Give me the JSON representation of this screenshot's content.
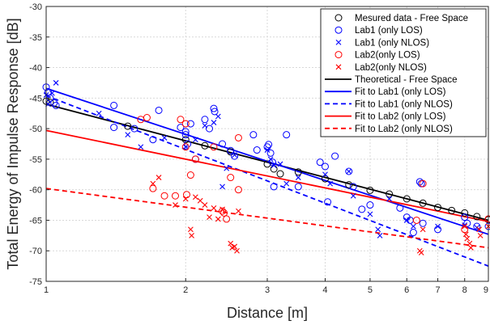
{
  "chart_data": {
    "type": "scatter",
    "title": "",
    "xlabel": "Distance [m]",
    "ylabel": "Total Energy of Impulse Response [dB]",
    "xscale": "log",
    "xlim": [
      1,
      9
    ],
    "ylim": [
      -75,
      -30
    ],
    "xticks": [
      1,
      2,
      3,
      4,
      5,
      6,
      7,
      8,
      9
    ],
    "yticks": [
      -75,
      -70,
      -65,
      -60,
      -55,
      -50,
      -45,
      -40,
      -35,
      -30
    ],
    "grid": true,
    "legend_placement": "top-right",
    "colors": {
      "black": "#000000",
      "blue": "#0000ff",
      "red": "#ff0000",
      "grid": "#d9d9d9"
    },
    "scatter_series": [
      {
        "name": "Mesured data - Free Space",
        "marker": "circle",
        "color": "#000000",
        "points": [
          [
            1.0,
            -45.5
          ],
          [
            1.02,
            -45.7
          ],
          [
            1.5,
            -49.6
          ],
          [
            2.0,
            -51.8
          ],
          [
            2.2,
            -52.8
          ],
          [
            2.5,
            -53.8
          ],
          [
            3.0,
            -55.8
          ],
          [
            3.1,
            -56.6
          ],
          [
            3.2,
            -57.4
          ],
          [
            3.5,
            -57.1
          ],
          [
            4.0,
            -58.2
          ],
          [
            4.5,
            -59.2
          ],
          [
            5.0,
            -60.1
          ],
          [
            5.5,
            -60.7
          ],
          [
            6.0,
            -61.5
          ],
          [
            6.5,
            -62.2
          ],
          [
            7.0,
            -62.9
          ],
          [
            7.5,
            -63.4
          ],
          [
            8.0,
            -63.8
          ],
          [
            8.5,
            -64.4
          ],
          [
            9.0,
            -64.9
          ]
        ]
      },
      {
        "name": "Lab1 (only LOS)",
        "marker": "circle",
        "color": "#0000ff",
        "points": [
          [
            1.0,
            -43.2
          ],
          [
            1.01,
            -44.0
          ],
          [
            1.02,
            -45.0
          ],
          [
            1.04,
            -45.8
          ],
          [
            1.05,
            -46.2
          ],
          [
            1.4,
            -46.2
          ],
          [
            1.4,
            -49.8
          ],
          [
            1.55,
            -50.0
          ],
          [
            1.7,
            -51.8
          ],
          [
            1.75,
            -47.0
          ],
          [
            1.95,
            -49.8
          ],
          [
            2.0,
            -50.5
          ],
          [
            2.0,
            -51.0
          ],
          [
            2.02,
            -52.5
          ],
          [
            2.05,
            -49.2
          ],
          [
            2.1,
            -55.0
          ],
          [
            2.2,
            -48.5
          ],
          [
            2.25,
            -50.0
          ],
          [
            2.3,
            -46.7
          ],
          [
            2.31,
            -47.2
          ],
          [
            2.4,
            -52.5
          ],
          [
            2.5,
            -53.6
          ],
          [
            2.55,
            -54.5
          ],
          [
            2.8,
            -51.0
          ],
          [
            2.85,
            -53.5
          ],
          [
            3.0,
            -53.0
          ],
          [
            3.02,
            -52.6
          ],
          [
            3.05,
            -54.0
          ],
          [
            3.08,
            -55.5
          ],
          [
            3.1,
            -59.5
          ],
          [
            3.3,
            -51.0
          ],
          [
            3.5,
            -59.5
          ],
          [
            3.9,
            -55.5
          ],
          [
            4.0,
            -56.2
          ],
          [
            4.05,
            -62.0
          ],
          [
            4.2,
            -54.5
          ],
          [
            4.5,
            -57.0
          ],
          [
            4.6,
            -59.5
          ],
          [
            4.8,
            -63.2
          ],
          [
            5.0,
            -62.5
          ],
          [
            5.8,
            -63.0
          ],
          [
            6.0,
            -64.5
          ],
          [
            6.1,
            -65.0
          ],
          [
            6.2,
            -67.0
          ],
          [
            6.4,
            -58.7
          ],
          [
            6.45,
            -59.0
          ],
          [
            6.5,
            -65.5
          ],
          [
            7.0,
            -66.5
          ],
          [
            8.0,
            -64.5
          ],
          [
            8.1,
            -65.5
          ],
          [
            8.5,
            -66.0
          ],
          [
            9.0,
            -66.0
          ]
        ]
      },
      {
        "name": "Lab1 (only NLOS)",
        "marker": "x",
        "color": "#0000ff",
        "points": [
          [
            1.0,
            -44.5
          ],
          [
            1.01,
            -46.0
          ],
          [
            1.03,
            -44.2
          ],
          [
            1.05,
            -42.5
          ],
          [
            1.3,
            -47.5
          ],
          [
            1.5,
            -51.0
          ],
          [
            1.6,
            -53.0
          ],
          [
            1.8,
            -51.5
          ],
          [
            2.0,
            -53.0
          ],
          [
            2.1,
            -51.8
          ],
          [
            2.2,
            -49.5
          ],
          [
            2.3,
            -49.0
          ],
          [
            2.35,
            -48.0
          ],
          [
            2.4,
            -59.5
          ],
          [
            2.45,
            -56.5
          ],
          [
            2.55,
            -54.3
          ],
          [
            3.0,
            -53.5
          ],
          [
            3.05,
            -55.0
          ],
          [
            3.1,
            -56.0
          ],
          [
            3.2,
            -55.8
          ],
          [
            3.3,
            -59.0
          ],
          [
            3.5,
            -58.0
          ],
          [
            4.0,
            -57.5
          ],
          [
            4.1,
            -59.0
          ],
          [
            4.5,
            -57.0
          ],
          [
            4.6,
            -61.0
          ],
          [
            5.0,
            -64.0
          ],
          [
            5.2,
            -66.5
          ],
          [
            5.25,
            -67.5
          ],
          [
            5.5,
            -61.5
          ],
          [
            6.0,
            -65.0
          ],
          [
            6.2,
            -66.0
          ],
          [
            7.0,
            -66.0
          ],
          [
            8.0,
            -65.8
          ],
          [
            8.5,
            -66.2
          ]
        ]
      },
      {
        "name": "Lab2(only LOS)",
        "marker": "circle",
        "color": "#ff0000",
        "points": [
          [
            1.6,
            -48.5
          ],
          [
            1.65,
            -48.2
          ],
          [
            1.7,
            -59.8
          ],
          [
            1.8,
            -61.0
          ],
          [
            1.9,
            -61.0
          ],
          [
            1.95,
            -48.5
          ],
          [
            2.0,
            -49.2
          ],
          [
            2.0,
            -53.0
          ],
          [
            2.01,
            -60.8
          ],
          [
            2.05,
            -57.6
          ],
          [
            2.1,
            -55.0
          ],
          [
            2.3,
            -53.0
          ],
          [
            2.4,
            -63.5
          ],
          [
            2.42,
            -63.8
          ],
          [
            2.45,
            -64.8
          ],
          [
            2.5,
            -58.0
          ],
          [
            2.6,
            -51.5
          ],
          [
            2.6,
            -60.0
          ],
          [
            6.3,
            -65.0
          ],
          [
            6.5,
            -59.0
          ],
          [
            8.0,
            -66.5
          ],
          [
            9.0,
            -64.8
          ]
        ]
      },
      {
        "name": "Lab2(only NLOS)",
        "marker": "x",
        "color": "#ff0000",
        "points": [
          [
            1.7,
            -59.0
          ],
          [
            1.75,
            -58.0
          ],
          [
            1.9,
            -62.5
          ],
          [
            2.0,
            -61.5
          ],
          [
            2.05,
            -66.5
          ],
          [
            2.06,
            -67.5
          ],
          [
            2.1,
            -61.2
          ],
          [
            2.15,
            -61.8
          ],
          [
            2.2,
            -62.5
          ],
          [
            2.25,
            -64.5
          ],
          [
            2.3,
            -63.0
          ],
          [
            2.35,
            -64.8
          ],
          [
            2.4,
            -63.2
          ],
          [
            2.5,
            -68.8
          ],
          [
            2.52,
            -69.5
          ],
          [
            2.55,
            -69.3
          ],
          [
            2.58,
            -70.0
          ],
          [
            2.6,
            -63.5
          ],
          [
            6.4,
            -70.0
          ],
          [
            6.45,
            -70.3
          ],
          [
            6.5,
            -66.5
          ],
          [
            8.0,
            -66.0
          ],
          [
            8.05,
            -67.3
          ],
          [
            8.1,
            -68.0
          ],
          [
            8.2,
            -68.8
          ],
          [
            8.25,
            -69.5
          ],
          [
            8.6,
            -66.5
          ],
          [
            8.65,
            -67.5
          ],
          [
            9.0,
            -66.0
          ]
        ]
      }
    ],
    "line_series": [
      {
        "name": "Theoretical - Free Space",
        "color": "#000000",
        "dash": "solid",
        "x": [
          1,
          9
        ],
        "y": [
          -46.0,
          -65.0
        ]
      },
      {
        "name": "Fit to Lab1 (only LOS)",
        "color": "#0000ff",
        "dash": "solid",
        "x": [
          1,
          9
        ],
        "y": [
          -43.4,
          -67.3
        ]
      },
      {
        "name": "Fit to Lab1 (only NLOS)",
        "color": "#0000ff",
        "dash": "dashed",
        "x": [
          1,
          9
        ],
        "y": [
          -44.6,
          -72.5
        ]
      },
      {
        "name": "Fit to Lab2 (only LOS)",
        "color": "#ff0000",
        "dash": "solid",
        "x": [
          1,
          9
        ],
        "y": [
          -50.3,
          -65.2
        ]
      },
      {
        "name": "Fit to Lab2 (only NLOS)",
        "color": "#ff0000",
        "dash": "dashed",
        "x": [
          1,
          9
        ],
        "y": [
          -59.8,
          -69.5
        ]
      }
    ],
    "legend": [
      {
        "label": "Mesured data - Free Space",
        "kind": "circle",
        "color": "#000000"
      },
      {
        "label": "Lab1 (only LOS)",
        "kind": "circle",
        "color": "#0000ff"
      },
      {
        "label": "Lab1 (only NLOS)",
        "kind": "x",
        "color": "#0000ff"
      },
      {
        "label": "Lab2(only LOS)",
        "kind": "circle",
        "color": "#ff0000"
      },
      {
        "label": "Lab2(only NLOS)",
        "kind": "x",
        "color": "#ff0000"
      },
      {
        "label": "Theoretical - Free Space",
        "kind": "line",
        "color": "#000000"
      },
      {
        "label": "Fit to Lab1 (only LOS)",
        "kind": "line",
        "color": "#0000ff"
      },
      {
        "label": "Fit to Lab1 (only NLOS)",
        "kind": "dashed",
        "color": "#0000ff"
      },
      {
        "label": "Fit to Lab2 (only LOS)",
        "kind": "line",
        "color": "#ff0000"
      },
      {
        "label": "Fit to Lab2 (only NLOS)",
        "kind": "dashed",
        "color": "#ff0000"
      }
    ]
  }
}
